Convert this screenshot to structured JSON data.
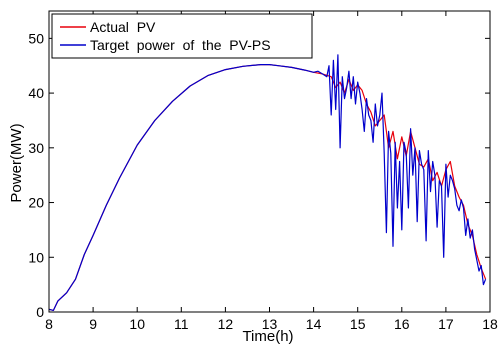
{
  "chart_data": {
    "type": "line",
    "title": "",
    "xlabel": "Time(h)",
    "ylabel": "Power(MW)",
    "xlim": [
      8,
      18
    ],
    "ylim": [
      0,
      55
    ],
    "xticks": [
      8,
      9,
      10,
      11,
      12,
      13,
      14,
      15,
      16,
      17,
      18
    ],
    "yticks": [
      0,
      10,
      20,
      30,
      40,
      50
    ],
    "grid": false,
    "legend_position": "top-left",
    "series": [
      {
        "name": "Actual  PV",
        "color": "#e8000b",
        "x": [
          8.0,
          8.1,
          8.2,
          8.4,
          8.6,
          8.8,
          9.0,
          9.3,
          9.6,
          10.0,
          10.4,
          10.8,
          11.2,
          11.6,
          12.0,
          12.4,
          12.8,
          13.0,
          13.2,
          13.5,
          13.8,
          14.0,
          14.2,
          14.4,
          14.5,
          14.6,
          14.7,
          14.8,
          14.9,
          15.0,
          15.1,
          15.2,
          15.3,
          15.4,
          15.5,
          15.6,
          15.7,
          15.8,
          15.9,
          16.0,
          16.1,
          16.2,
          16.3,
          16.4,
          16.5,
          16.6,
          16.7,
          16.8,
          16.9,
          17.0,
          17.1,
          17.2,
          17.3,
          17.4,
          17.5,
          17.6,
          17.7,
          17.8,
          17.9
        ],
        "y": [
          0.5,
          0.3,
          2.0,
          3.5,
          6.0,
          10.5,
          14.0,
          19.5,
          24.5,
          30.5,
          35.0,
          38.5,
          41.3,
          43.2,
          44.3,
          44.9,
          45.2,
          45.2,
          45.0,
          44.7,
          44.2,
          43.8,
          43.5,
          43.0,
          41.0,
          42.0,
          40.0,
          42.5,
          40.5,
          41.5,
          40.5,
          38.0,
          36.5,
          34.0,
          35.0,
          36.0,
          30.0,
          33.0,
          28.0,
          32.0,
          28.5,
          33.0,
          30.0,
          27.0,
          26.5,
          28.0,
          24.0,
          25.5,
          23.0,
          26.0,
          27.5,
          23.0,
          21.0,
          19.5,
          16.0,
          14.0,
          10.5,
          8.0,
          6.0
        ]
      },
      {
        "name": "Target  power  of  the  PV-PS",
        "color": "#0000cc",
        "x": [
          8.0,
          8.1,
          8.2,
          8.4,
          8.6,
          8.8,
          9.0,
          9.3,
          9.6,
          10.0,
          10.4,
          10.8,
          11.2,
          11.6,
          12.0,
          12.4,
          12.8,
          13.0,
          13.2,
          13.5,
          13.8,
          14.0,
          14.1,
          14.2,
          14.3,
          14.35,
          14.4,
          14.45,
          14.5,
          14.55,
          14.6,
          14.65,
          14.7,
          14.75,
          14.8,
          14.85,
          14.9,
          14.95,
          15.0,
          15.05,
          15.1,
          15.15,
          15.2,
          15.25,
          15.3,
          15.35,
          15.4,
          15.45,
          15.5,
          15.55,
          15.6,
          15.65,
          15.7,
          15.75,
          15.8,
          15.85,
          15.9,
          15.95,
          16.0,
          16.05,
          16.1,
          16.15,
          16.2,
          16.25,
          16.3,
          16.35,
          16.4,
          16.45,
          16.5,
          16.55,
          16.6,
          16.65,
          16.7,
          16.75,
          16.8,
          16.85,
          16.9,
          16.95,
          17.0,
          17.05,
          17.1,
          17.15,
          17.2,
          17.25,
          17.3,
          17.35,
          17.4,
          17.45,
          17.5,
          17.55,
          17.6,
          17.65,
          17.7,
          17.75,
          17.8,
          17.85,
          17.9
        ],
        "y": [
          0.5,
          0.3,
          2.0,
          3.5,
          6.0,
          10.5,
          14.0,
          19.5,
          24.5,
          30.5,
          35.0,
          38.5,
          41.3,
          43.2,
          44.3,
          44.9,
          45.2,
          45.2,
          45.0,
          44.7,
          44.2,
          43.8,
          44.0,
          43.5,
          43.0,
          45.0,
          36.0,
          46.0,
          37.0,
          47.0,
          30.0,
          43.0,
          39.0,
          41.0,
          44.0,
          39.0,
          43.0,
          38.0,
          42.0,
          40.0,
          37.0,
          33.0,
          39.0,
          36.0,
          35.0,
          31.0,
          38.0,
          34.0,
          36.0,
          40.0,
          29.0,
          14.5,
          33.0,
          29.0,
          12.0,
          31.0,
          19.0,
          27.5,
          15.0,
          31.0,
          29.0,
          19.0,
          33.5,
          25.0,
          30.0,
          16.5,
          29.5,
          27.0,
          26.0,
          13.0,
          29.5,
          22.0,
          27.5,
          25.0,
          15.5,
          24.0,
          23.0,
          10.0,
          27.0,
          21.0,
          25.0,
          24.0,
          22.5,
          19.5,
          18.5,
          20.5,
          19.0,
          14.0,
          17.0,
          13.5,
          15.0,
          11.5,
          9.5,
          7.5,
          8.5,
          5.0,
          6.0
        ]
      }
    ]
  }
}
